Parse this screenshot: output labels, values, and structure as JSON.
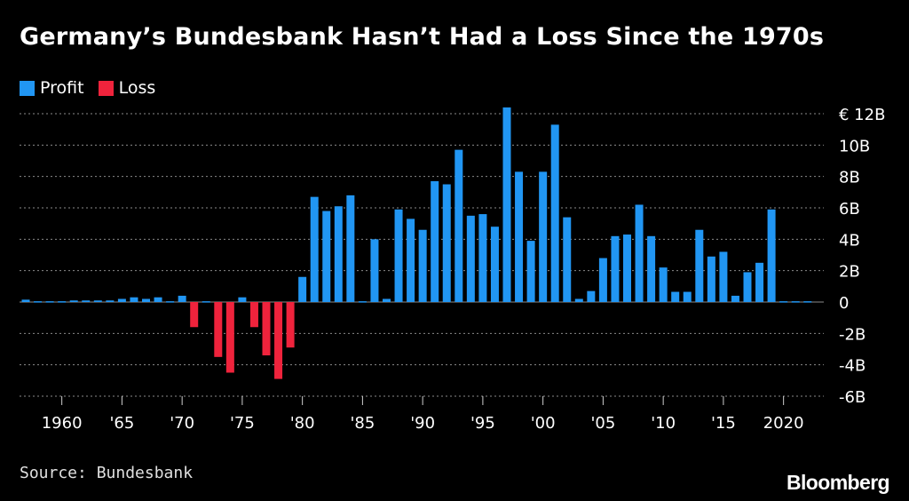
{
  "title": "Germany’s Bundesbank Hasn’t Had a Loss Since the 1970s",
  "source": "Source: Bundesbank",
  "logo": "Bloomberg",
  "colors": {
    "profit": "#2196f3",
    "loss": "#ef233c",
    "background": "#000000",
    "grid": "#8a8a8a"
  },
  "chart_data": {
    "type": "bar",
    "title": "Germany’s Bundesbank Hasn’t Had a Loss Since the 1970s",
    "xlabel": "",
    "ylabel": "",
    "series": [
      {
        "name": "Profit",
        "color": "#2196f3"
      },
      {
        "name": "Loss",
        "color": "#ef233c"
      }
    ],
    "x": [
      1957,
      1958,
      1959,
      1960,
      1961,
      1962,
      1963,
      1964,
      1965,
      1966,
      1967,
      1968,
      1969,
      1970,
      1971,
      1972,
      1973,
      1974,
      1975,
      1976,
      1977,
      1978,
      1979,
      1980,
      1981,
      1982,
      1983,
      1984,
      1985,
      1986,
      1987,
      1988,
      1989,
      1990,
      1991,
      1992,
      1993,
      1994,
      1995,
      1996,
      1997,
      1998,
      1999,
      2000,
      2001,
      2002,
      2003,
      2004,
      2005,
      2006,
      2007,
      2008,
      2009,
      2010,
      2011,
      2012,
      2013,
      2014,
      2015,
      2016,
      2017,
      2018,
      2019,
      2020,
      2021,
      2022
    ],
    "values": [
      0.15,
      0.05,
      0.05,
      0.05,
      0.1,
      0.1,
      0.1,
      0.1,
      0.2,
      0.3,
      0.2,
      0.3,
      0.05,
      0.4,
      -1.6,
      0.05,
      -3.5,
      -4.5,
      0.3,
      -1.6,
      -3.4,
      -4.9,
      -2.9,
      1.6,
      6.7,
      5.8,
      6.1,
      6.8,
      0.05,
      4.0,
      0.2,
      5.9,
      5.3,
      4.6,
      7.7,
      7.5,
      9.7,
      5.5,
      5.6,
      4.8,
      12.4,
      8.3,
      3.9,
      8.3,
      11.3,
      5.4,
      0.2,
      0.7,
      2.8,
      4.2,
      4.3,
      6.2,
      4.2,
      2.2,
      0.65,
      0.65,
      4.6,
      2.9,
      3.2,
      0.4,
      1.9,
      2.5,
      5.9,
      0.05,
      0.05,
      0.05
    ],
    "x_ticks": [
      "1960",
      "'65",
      "'70",
      "'75",
      "'80",
      "'85",
      "'90",
      "'95",
      "'00",
      "'05",
      "'10",
      "'15",
      "2020"
    ],
    "y_ticks": [
      "€ 12B",
      "10B",
      "8B",
      "6B",
      "4B",
      "2B",
      "0",
      "-2B",
      "-4B",
      "-6B"
    ],
    "ylim": [
      -6,
      12
    ],
    "grid": "horizontal dotted",
    "legend": "top-left"
  }
}
